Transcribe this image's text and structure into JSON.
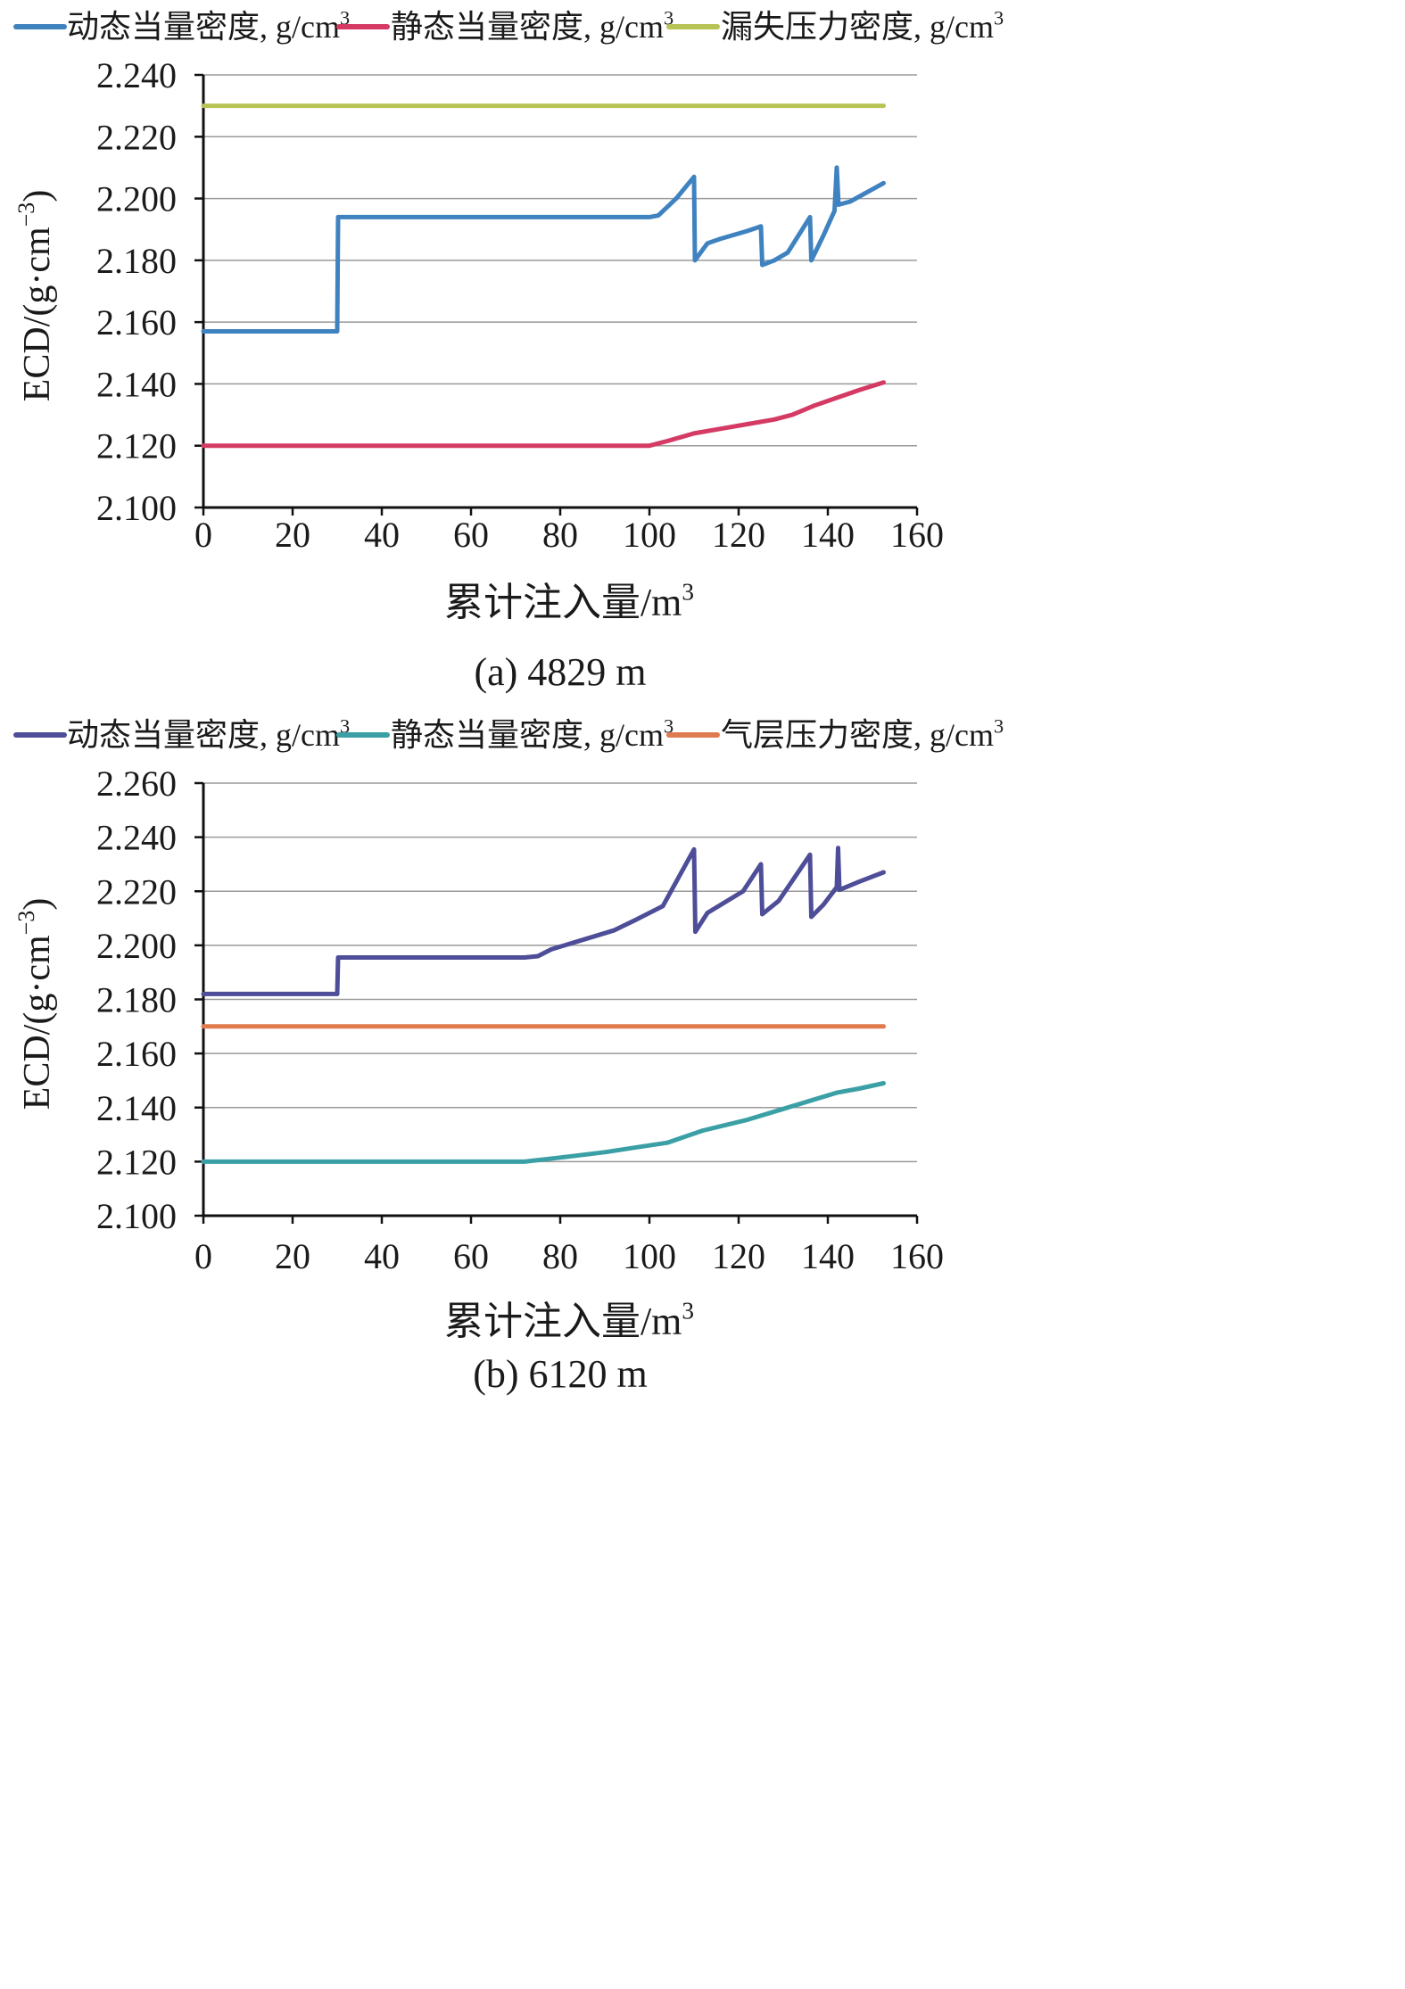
{
  "chart_data": [
    {
      "type": "line",
      "caption": "(a) 4829 m",
      "xlabel": "累计注入量/m",
      "xlabel_sup": "3",
      "ylabel": "ECD/(g·cm",
      "ylabel_sup": "−3",
      "ylabel_close": ")",
      "xlim": [
        0,
        160
      ],
      "ylim": [
        2.1,
        2.24
      ],
      "xticks": [
        "0",
        "20",
        "40",
        "60",
        "80",
        "100",
        "120",
        "140",
        "160"
      ],
      "yticks": [
        "2.100",
        "2.120",
        "2.140",
        "2.160",
        "2.180",
        "2.200",
        "2.220",
        "2.240"
      ],
      "grid": true,
      "legend_position": "top",
      "series": [
        {
          "name": "动态当量密度, g/cm",
          "name_sup": "3",
          "color": "#3f82c0",
          "points": [
            [
              0,
              2.157
            ],
            [
              30,
              2.157
            ],
            [
              30.2,
              2.194
            ],
            [
              100,
              2.194
            ],
            [
              102,
              2.1945
            ],
            [
              106,
              2.2
            ],
            [
              110,
              2.207
            ],
            [
              110.2,
              2.18
            ],
            [
              113,
              2.1855
            ],
            [
              116,
              2.187
            ],
            [
              122,
              2.1895
            ],
            [
              125,
              2.191
            ],
            [
              125.3,
              2.1785
            ],
            [
              128,
              2.18
            ],
            [
              131,
              2.1825
            ],
            [
              136,
              2.194
            ],
            [
              136.3,
              2.18
            ],
            [
              139,
              2.188
            ],
            [
              141.5,
              2.196
            ],
            [
              142,
              2.21
            ],
            [
              142.4,
              2.198
            ],
            [
              145,
              2.199
            ],
            [
              152.5,
              2.205
            ]
          ]
        },
        {
          "name": "静态当量密度, g/cm",
          "name_sup": "3",
          "color": "#d43a63",
          "points": [
            [
              0,
              2.12
            ],
            [
              100,
              2.12
            ],
            [
              104,
              2.1215
            ],
            [
              110,
              2.124
            ],
            [
              116,
              2.1255
            ],
            [
              122,
              2.127
            ],
            [
              128,
              2.1285
            ],
            [
              132,
              2.13
            ],
            [
              137,
              2.133
            ],
            [
              142,
              2.1355
            ],
            [
              147,
              2.138
            ],
            [
              152.5,
              2.1405
            ]
          ]
        },
        {
          "name": "漏失压力密度, g/cm",
          "name_sup": "3",
          "color": "#b7c355",
          "points": [
            [
              0,
              2.23
            ],
            [
              152.5,
              2.23
            ]
          ]
        }
      ]
    },
    {
      "type": "line",
      "caption": "(b) 6120 m",
      "xlabel": "累计注入量/m",
      "xlabel_sup": "3",
      "ylabel": "ECD/(g·cm",
      "ylabel_sup": "−3",
      "ylabel_close": ")",
      "xlim": [
        0,
        160
      ],
      "ylim": [
        2.1,
        2.26
      ],
      "xticks": [
        "0",
        "20",
        "40",
        "60",
        "80",
        "100",
        "120",
        "140",
        "160"
      ],
      "yticks": [
        "2.100",
        "2.120",
        "2.140",
        "2.160",
        "2.180",
        "2.200",
        "2.220",
        "2.240",
        "2.260"
      ],
      "grid": true,
      "legend_position": "top",
      "series": [
        {
          "name": "动态当量密度, g/cm",
          "name_sup": "3",
          "color": "#4e4d98",
          "points": [
            [
              0,
              2.182
            ],
            [
              30,
              2.182
            ],
            [
              30.2,
              2.1955
            ],
            [
              72,
              2.1955
            ],
            [
              75,
              2.196
            ],
            [
              78,
              2.1985
            ],
            [
              84,
              2.2015
            ],
            [
              92,
              2.2055
            ],
            [
              97,
              2.2095
            ],
            [
              103,
              2.2145
            ],
            [
              110,
              2.2355
            ],
            [
              110.3,
              2.205
            ],
            [
              113,
              2.212
            ],
            [
              121,
              2.22
            ],
            [
              125,
              2.23
            ],
            [
              125.3,
              2.2115
            ],
            [
              129,
              2.2165
            ],
            [
              136,
              2.2335
            ],
            [
              136.3,
              2.2105
            ],
            [
              139,
              2.215
            ],
            [
              142,
              2.2215
            ],
            [
              142.3,
              2.236
            ],
            [
              142.6,
              2.2205
            ],
            [
              147,
              2.2235
            ],
            [
              152.5,
              2.227
            ]
          ]
        },
        {
          "name": "静态当量密度, g/cm",
          "name_sup": "3",
          "color": "#3aa0a6",
          "points": [
            [
              0,
              2.12
            ],
            [
              72,
              2.12
            ],
            [
              80,
              2.1215
            ],
            [
              90,
              2.1235
            ],
            [
              96,
              2.125
            ],
            [
              104,
              2.127
            ],
            [
              112,
              2.1315
            ],
            [
              122,
              2.1355
            ],
            [
              130,
              2.1395
            ],
            [
              136,
              2.1425
            ],
            [
              142,
              2.1455
            ],
            [
              147,
              2.147
            ],
            [
              152.5,
              2.149
            ]
          ]
        },
        {
          "name": "气层压力密度, g/cm",
          "name_sup": "3",
          "color": "#e07a4f",
          "points": [
            [
              0,
              2.17
            ],
            [
              152.5,
              2.17
            ]
          ]
        }
      ]
    }
  ]
}
